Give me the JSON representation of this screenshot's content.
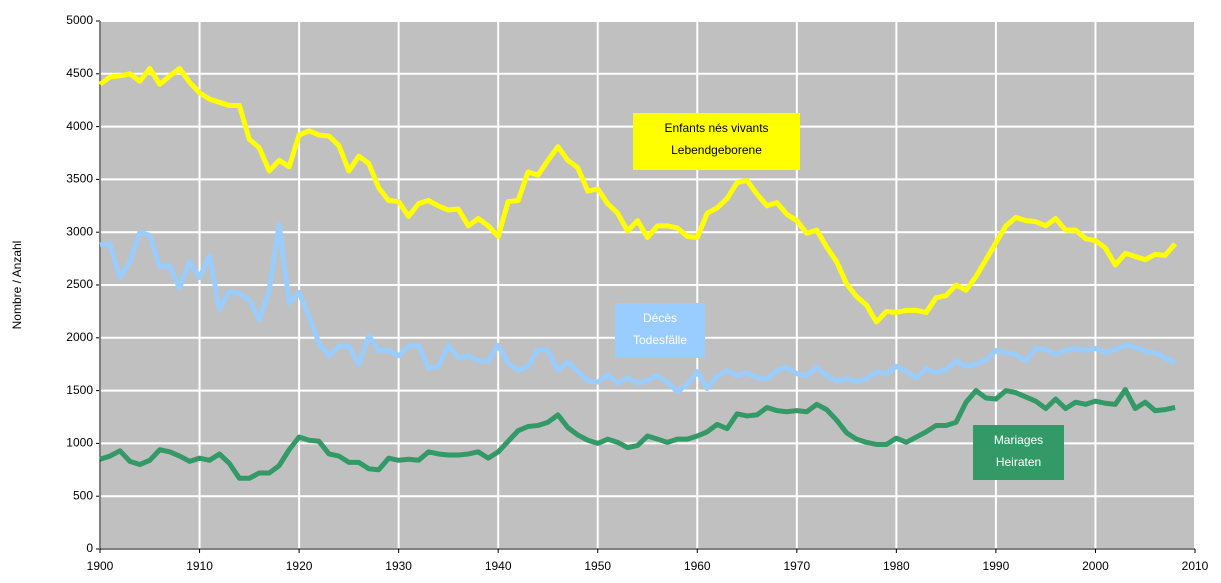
{
  "chart_data": {
    "type": "line",
    "y_label": "Nombre / Anzahl",
    "xlim": [
      1900,
      2010
    ],
    "ylim": [
      0,
      5000
    ],
    "xticks": [
      1900,
      1910,
      1920,
      1930,
      1940,
      1950,
      1960,
      1970,
      1980,
      1990,
      2000,
      2010
    ],
    "yticks": [
      0,
      500,
      1000,
      1500,
      2000,
      2500,
      3000,
      3500,
      4000,
      4500,
      5000
    ],
    "grid": true,
    "x": [
      1900,
      1901,
      1902,
      1903,
      1904,
      1905,
      1906,
      1907,
      1908,
      1909,
      1910,
      1911,
      1912,
      1913,
      1914,
      1915,
      1916,
      1917,
      1918,
      1919,
      1920,
      1921,
      1922,
      1923,
      1924,
      1925,
      1926,
      1927,
      1928,
      1929,
      1930,
      1931,
      1932,
      1933,
      1934,
      1935,
      1936,
      1937,
      1938,
      1939,
      1940,
      1941,
      1942,
      1943,
      1944,
      1945,
      1946,
      1947,
      1948,
      1949,
      1950,
      1951,
      1952,
      1953,
      1954,
      1955,
      1956,
      1957,
      1958,
      1959,
      1960,
      1961,
      1962,
      1963,
      1964,
      1965,
      1966,
      1967,
      1968,
      1969,
      1970,
      1971,
      1972,
      1973,
      1974,
      1975,
      1976,
      1977,
      1978,
      1979,
      1980,
      1981,
      1982,
      1983,
      1984,
      1985,
      1986,
      1987,
      1988,
      1989,
      1990,
      1991,
      1992,
      1993,
      1994,
      1995,
      1996,
      1997,
      1998,
      1999,
      2000,
      2001,
      2002,
      2003,
      2004,
      2005,
      2006,
      2007,
      2008
    ],
    "series": [
      {
        "name": [
          "Enfants nés vivants",
          "Lebendgeborene"
        ],
        "color": "#ffff00",
        "values": [
          4400,
          4470,
          4480,
          4500,
          4430,
          4550,
          4400,
          4480,
          4550,
          4420,
          4320,
          4260,
          4230,
          4200,
          4200,
          3880,
          3800,
          3580,
          3680,
          3620,
          3920,
          3960,
          3920,
          3910,
          3820,
          3580,
          3720,
          3650,
          3420,
          3300,
          3290,
          3150,
          3270,
          3300,
          3250,
          3210,
          3220,
          3060,
          3130,
          3060,
          2960,
          3290,
          3300,
          3570,
          3540,
          3680,
          3810,
          3680,
          3610,
          3390,
          3410,
          3270,
          3180,
          3010,
          3110,
          2950,
          3060,
          3060,
          3040,
          2960,
          2950,
          3180,
          3230,
          3320,
          3470,
          3490,
          3360,
          3250,
          3280,
          3170,
          3110,
          2990,
          3020,
          2860,
          2720,
          2510,
          2390,
          2310,
          2150,
          2250,
          2240,
          2260,
          2260,
          2240,
          2380,
          2400,
          2500,
          2450,
          2580,
          2740,
          2900,
          3060,
          3140,
          3110,
          3100,
          3060,
          3130,
          3020,
          3020,
          2940,
          2920,
          2850,
          2690,
          2800,
          2770,
          2740,
          2790,
          2780,
          2890
        ]
      },
      {
        "name": [
          "Décès",
          "Todesfälle"
        ],
        "color": "#99ccff",
        "values": [
          2880,
          2890,
          2570,
          2720,
          3000,
          2970,
          2670,
          2680,
          2470,
          2720,
          2570,
          2780,
          2270,
          2440,
          2420,
          2360,
          2170,
          2450,
          3070,
          2330,
          2430,
          2200,
          1950,
          1830,
          1920,
          1920,
          1750,
          2020,
          1880,
          1880,
          1830,
          1920,
          1930,
          1710,
          1730,
          1930,
          1810,
          1830,
          1780,
          1780,
          1930,
          1760,
          1690,
          1730,
          1890,
          1880,
          1690,
          1770,
          1680,
          1590,
          1580,
          1650,
          1570,
          1620,
          1570,
          1600,
          1640,
          1580,
          1490,
          1560,
          1680,
          1520,
          1640,
          1690,
          1640,
          1670,
          1620,
          1610,
          1690,
          1720,
          1660,
          1640,
          1720,
          1640,
          1590,
          1610,
          1590,
          1610,
          1680,
          1660,
          1730,
          1680,
          1620,
          1710,
          1670,
          1700,
          1780,
          1730,
          1750,
          1790,
          1880,
          1860,
          1840,
          1780,
          1900,
          1890,
          1840,
          1880,
          1900,
          1880,
          1900,
          1860,
          1890,
          1930,
          1910,
          1870,
          1860,
          1810,
          1760
        ]
      },
      {
        "name": [
          "Mariages",
          "Heiraten"
        ],
        "color": "#339966",
        "values": [
          850,
          880,
          930,
          830,
          800,
          840,
          940,
          920,
          880,
          830,
          860,
          840,
          900,
          810,
          670,
          670,
          720,
          720,
          790,
          940,
          1060,
          1030,
          1020,
          900,
          880,
          820,
          820,
          760,
          750,
          860,
          840,
          850,
          840,
          920,
          900,
          890,
          890,
          900,
          920,
          860,
          920,
          1020,
          1120,
          1160,
          1170,
          1200,
          1270,
          1150,
          1080,
          1030,
          1000,
          1040,
          1010,
          960,
          980,
          1070,
          1040,
          1010,
          1040,
          1040,
          1070,
          1110,
          1180,
          1140,
          1280,
          1260,
          1270,
          1340,
          1310,
          1300,
          1310,
          1300,
          1370,
          1320,
          1220,
          1100,
          1040,
          1010,
          990,
          990,
          1050,
          1010,
          1060,
          1110,
          1170,
          1170,
          1200,
          1390,
          1500,
          1430,
          1420,
          1500,
          1480,
          1440,
          1400,
          1330,
          1420,
          1330,
          1390,
          1370,
          1400,
          1380,
          1370,
          1510,
          1330,
          1390,
          1310,
          1320,
          1340
        ]
      }
    ]
  }
}
